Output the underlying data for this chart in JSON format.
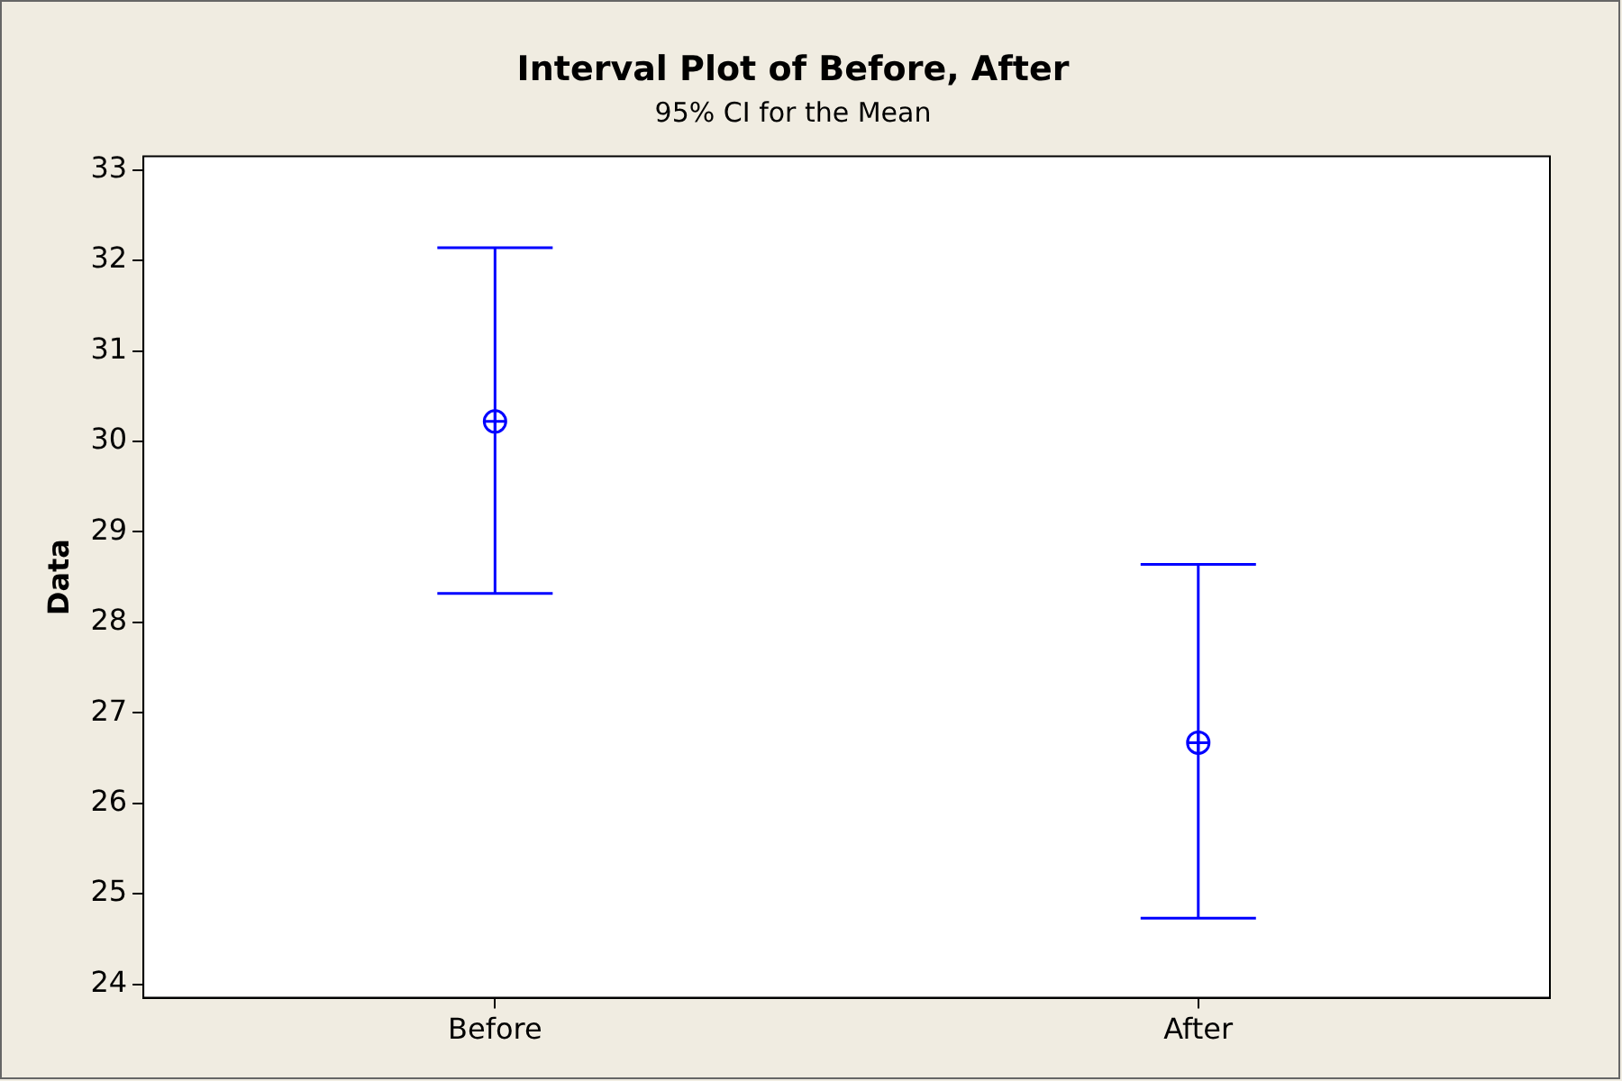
{
  "chart_data": {
    "type": "scatter",
    "title": "Interval Plot of Before, After",
    "subtitle": "95% CI for the Mean",
    "ylabel": "Data",
    "categories": [
      "Before",
      "After"
    ],
    "series": [
      {
        "color": "#0000ff",
        "values": [
          30.22,
          26.67
        ],
        "errors": [
          [
            28.32,
            32.14
          ],
          [
            24.73,
            28.64
          ]
        ]
      }
    ],
    "ylim": [
      23.85,
      33.15
    ],
    "yticks": [
      24,
      25,
      26,
      27,
      28,
      29,
      30,
      31,
      32,
      33
    ],
    "marker": "circle",
    "grid": false,
    "legend": false
  }
}
